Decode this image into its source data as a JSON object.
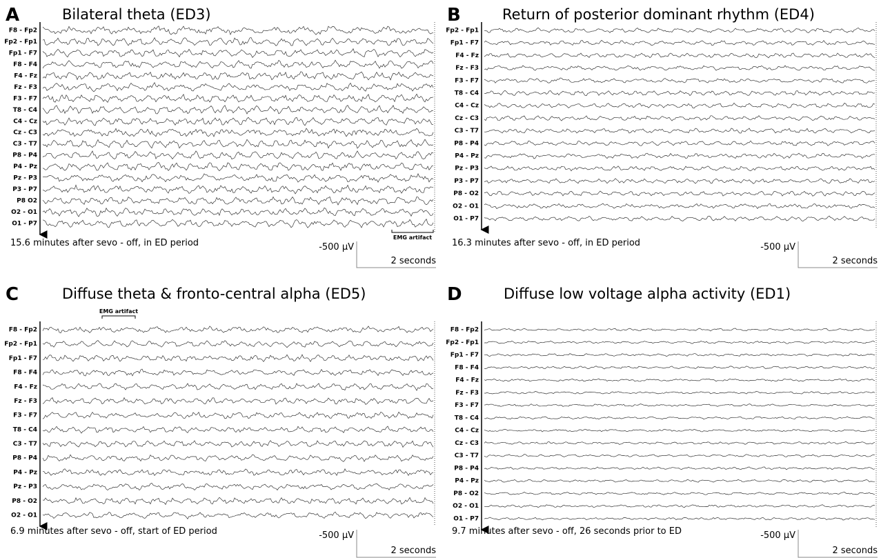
{
  "panels": [
    {
      "letter": "A",
      "title": "Bilateral theta (ED3)",
      "channels": [
        "F8 - Fp2",
        "Fp2 - Fp1",
        "Fp1 - F7",
        "F8 - F4",
        "F4 - Fz",
        "Fz - F3",
        "F3 - F7",
        "T8 - C4",
        "C4 - Cz",
        "Cz - C3",
        "C3 - T7",
        "P8 - P4",
        "P4 - Pz",
        "Pz - P3",
        "P3 - P7",
        "P8  O2",
        "O2 - O1",
        "O1 - P7"
      ],
      "annotation": "EMG artifact",
      "caption": "15.6 minutes after sevo - off, in ED period",
      "scale_voltage": "-500 µV",
      "scale_time": "2 seconds"
    },
    {
      "letter": "B",
      "title": "Return of posterior dominant rhythm (ED4)",
      "channels": [
        "Fp2 - Fp1",
        "Fp1 - F7",
        "F4 - Fz",
        "Fz - F3",
        "F3 - F7",
        "T8 - C4",
        "C4 - Cz",
        "Cz - C3",
        "C3 - T7",
        "P8 - P4",
        "P4 - Pz",
        "Pz - P3",
        "P3 - P7",
        "P8 - O2",
        "O2 - O1",
        "O1 - P7"
      ],
      "caption": "16.3 minutes after sevo - off, in ED period",
      "scale_voltage": "-500 µV",
      "scale_time": "2 seconds"
    },
    {
      "letter": "C",
      "title": "Diffuse theta & fronto-central alpha (ED5)",
      "channels": [
        "F8 - Fp2",
        "Fp2 - Fp1",
        "Fp1 - F7",
        "F8 - F4",
        "F4 - Fz",
        "Fz - F3",
        "F3 - F7",
        "T8 - C4",
        "C3 - T7",
        "P8 - P4",
        "P4 - Pz",
        "Pz - P3",
        "P8 - O2",
        "O2 - O1"
      ],
      "annotation": "EMG artifact",
      "caption": "6.9 minutes after sevo - off, start of ED period",
      "scale_voltage": "-500 µV",
      "scale_time": "2 seconds"
    },
    {
      "letter": "D",
      "title": "Diffuse low voltage alpha activity (ED1)",
      "channels": [
        "F8 - Fp2",
        "Fp2 - Fp1",
        "Fp1 - F7",
        "F8 - F4",
        "F4 - Fz",
        "Fz - F3",
        "F3 - F7",
        "T8 - C4",
        "C4 - Cz",
        "Cz - C3",
        "C3 - T7",
        "P8 - P4",
        "P4 - Pz",
        "P8 - O2",
        "O2 - O1",
        "O1 - P7"
      ],
      "caption": "9.7 minutes after sevo - off, 26 seconds prior to ED",
      "scale_voltage": "-500 µV",
      "scale_time": "2 seconds"
    }
  ]
}
